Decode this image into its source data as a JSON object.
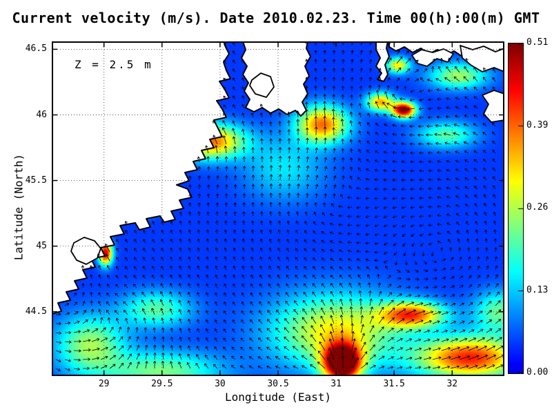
{
  "chart_data": {
    "type": "heatmap",
    "subtype": "quiver-vector-field-map",
    "title": "Current velocity (m/s). Date 2010.02.23. Time 00(h):00(m) GMT",
    "annotation": "Z = 2.5 m",
    "xlabel": "Longitude (East)",
    "ylabel": "Latitude (North)",
    "units": "m/s",
    "xlim": [
      28.55,
      32.45
    ],
    "ylim": [
      44.01,
      46.56
    ],
    "xticks": [
      29,
      29.5,
      30,
      30.5,
      31,
      31.5,
      32
    ],
    "xtick_labels": [
      "29",
      "29.5",
      "30",
      "30.5",
      "31",
      "31.5",
      "32"
    ],
    "yticks": [
      44.5,
      45,
      45.5,
      46,
      46.5
    ],
    "ytick_labels": [
      "44.5",
      "45",
      "45.5",
      "46",
      "46.5"
    ],
    "grid": "dotted",
    "colorbar": {
      "vmin": 0.0,
      "vmax": 0.51,
      "tick_labels": [
        "0.51",
        "0.39",
        "0.26",
        "0.13",
        "0.00"
      ],
      "colormap": "jet",
      "low_color": "#0000e6",
      "high_color": "#800000"
    },
    "base_magnitude": 0.045,
    "magnitude_blobs": [
      [
        31.05,
        44.11,
        0.16,
        0.14,
        0.55
      ],
      [
        31.0,
        44.35,
        0.55,
        0.28,
        0.26
      ],
      [
        32.15,
        44.15,
        0.45,
        0.16,
        0.38
      ],
      [
        31.65,
        44.48,
        0.28,
        0.1,
        0.33
      ],
      [
        29.9,
        45.8,
        0.3,
        0.13,
        0.34
      ],
      [
        30.88,
        45.93,
        0.22,
        0.14,
        0.33
      ],
      [
        31.58,
        46.04,
        0.1,
        0.06,
        0.48
      ],
      [
        31.38,
        46.1,
        0.12,
        0.07,
        0.3
      ],
      [
        29.01,
        44.95,
        0.06,
        0.09,
        0.42
      ],
      [
        28.88,
        44.25,
        0.3,
        0.22,
        0.2
      ],
      [
        32.05,
        46.3,
        0.25,
        0.1,
        0.2
      ],
      [
        31.53,
        46.38,
        0.1,
        0.06,
        0.26
      ],
      [
        32.4,
        44.5,
        0.22,
        0.16,
        0.17
      ],
      [
        29.45,
        44.52,
        0.3,
        0.14,
        0.16
      ],
      [
        30.55,
        45.6,
        0.35,
        0.25,
        0.1
      ],
      [
        31.95,
        45.85,
        0.25,
        0.1,
        0.16
      ],
      [
        29.32,
        45.32,
        0.12,
        0.08,
        0.15
      ],
      [
        29.5,
        44.05,
        0.5,
        0.15,
        0.18
      ]
    ],
    "flow_features": [
      {
        "type": "source",
        "lon": 31.05,
        "lat": 43.95,
        "strength": 2.0
      },
      {
        "type": "vortex",
        "lon": 30.85,
        "lat": 45.25,
        "strength": -1.2
      },
      {
        "type": "vortex",
        "lon": 29.95,
        "lat": 45.75,
        "strength": 0.9
      },
      {
        "type": "vortex",
        "lon": 31.95,
        "lat": 44.95,
        "strength": 1.2
      },
      {
        "type": "vortex",
        "lon": 31.45,
        "lat": 46.12,
        "strength": -0.7
      },
      {
        "type": "vortex",
        "lon": 29.35,
        "lat": 44.45,
        "strength": 0.5
      },
      {
        "type": "vortex",
        "lon": 28.4,
        "lat": 45.2,
        "strength": 1.2
      },
      {
        "type": "uniform",
        "u": -0.2,
        "v": 0.15
      }
    ],
    "land_polygons": [
      [
        [
          0,
          395
        ],
        [
          14,
          391
        ],
        [
          9,
          379
        ],
        [
          27,
          375
        ],
        [
          21,
          363
        ],
        [
          39,
          359
        ],
        [
          33,
          347
        ],
        [
          51,
          343
        ],
        [
          45,
          331
        ],
        [
          63,
          327
        ],
        [
          57,
          315
        ],
        [
          77,
          311
        ],
        [
          71,
          299
        ],
        [
          91,
          295
        ],
        [
          85,
          283
        ],
        [
          105,
          279
        ],
        [
          99,
          267
        ],
        [
          121,
          263
        ],
        [
          127,
          273
        ],
        [
          143,
          269
        ],
        [
          137,
          257
        ],
        [
          157,
          253
        ],
        [
          163,
          262
        ],
        [
          179,
          258
        ],
        [
          173,
          246
        ],
        [
          191,
          242
        ],
        [
          185,
          230
        ],
        [
          203,
          226
        ],
        [
          197,
          214
        ],
        [
          181,
          208
        ],
        [
          199,
          202
        ],
        [
          193,
          190
        ],
        [
          211,
          186
        ],
        [
          205,
          174
        ],
        [
          223,
          170
        ],
        [
          217,
          158
        ],
        [
          235,
          154
        ],
        [
          229,
          142
        ],
        [
          247,
          138
        ],
        [
          241,
          126
        ],
        [
          235,
          114
        ],
        [
          253,
          110
        ],
        [
          247,
          98
        ],
        [
          239,
          86
        ],
        [
          257,
          82
        ],
        [
          251,
          70
        ],
        [
          243,
          58
        ],
        [
          259,
          54
        ],
        [
          253,
          42
        ],
        [
          249,
          30
        ],
        [
          257,
          18
        ],
        [
          251,
          6
        ],
        [
          251,
          0
        ],
        [
          0,
          0
        ]
      ],
      [
        [
          277,
          0
        ],
        [
          281,
          12
        ],
        [
          275,
          24
        ],
        [
          283,
          36
        ],
        [
          277,
          48
        ],
        [
          285,
          60
        ],
        [
          279,
          72
        ],
        [
          287,
          84
        ],
        [
          281,
          96
        ],
        [
          293,
          102
        ],
        [
          305,
          96
        ],
        [
          317,
          104
        ],
        [
          329,
          98
        ],
        [
          341,
          106
        ],
        [
          353,
          100
        ],
        [
          361,
          108
        ],
        [
          369,
          100
        ],
        [
          363,
          88
        ],
        [
          371,
          76
        ],
        [
          365,
          62
        ],
        [
          373,
          50
        ],
        [
          367,
          36
        ],
        [
          375,
          22
        ],
        [
          369,
          10
        ],
        [
          371,
          0
        ]
      ],
      [
        [
          470,
          0
        ],
        [
          470,
          12
        ],
        [
          476,
          24
        ],
        [
          470,
          36
        ],
        [
          478,
          46
        ],
        [
          472,
          55
        ],
        [
          481,
          58
        ],
        [
          487,
          48
        ],
        [
          483,
          34
        ],
        [
          489,
          22
        ],
        [
          485,
          10
        ],
        [
          487,
          0
        ]
      ],
      [
        [
          489,
          0
        ],
        [
          489,
          8
        ],
        [
          499,
          14
        ],
        [
          511,
          8
        ],
        [
          523,
          16
        ],
        [
          535,
          10
        ],
        [
          547,
          18
        ],
        [
          559,
          12
        ],
        [
          571,
          20
        ],
        [
          583,
          14
        ],
        [
          595,
          22
        ],
        [
          607,
          16
        ],
        [
          619,
          24
        ],
        [
          631,
          18
        ],
        [
          643,
          26
        ],
        [
          656,
          20
        ],
        [
          656,
          0
        ]
      ]
    ],
    "island_outlines": [
      [
        [
          522,
          20
        ],
        [
          536,
          12
        ],
        [
          552,
          16
        ],
        [
          568,
          11
        ],
        [
          582,
          18
        ],
        [
          574,
          30
        ],
        [
          558,
          25
        ],
        [
          544,
          36
        ],
        [
          530,
          32
        ],
        [
          522,
          20
        ]
      ],
      [
        [
          592,
          6
        ],
        [
          610,
          12
        ],
        [
          626,
          7
        ],
        [
          643,
          15
        ],
        [
          656,
          10
        ],
        [
          656,
          44
        ],
        [
          641,
          38
        ],
        [
          624,
          44
        ],
        [
          607,
          34
        ],
        [
          595,
          24
        ],
        [
          592,
          6
        ]
      ],
      [
        [
          624,
          78
        ],
        [
          641,
          71
        ],
        [
          656,
          76
        ],
        [
          656,
          114
        ],
        [
          637,
          117
        ],
        [
          626,
          105
        ],
        [
          633,
          91
        ],
        [
          624,
          78
        ]
      ]
    ],
    "lake_outlines": [
      [
        [
          32,
          292
        ],
        [
          47,
          284
        ],
        [
          62,
          289
        ],
        [
          71,
          300
        ],
        [
          66,
          314
        ],
        [
          50,
          323
        ],
        [
          36,
          317
        ],
        [
          28,
          304
        ],
        [
          32,
          292
        ]
      ],
      [
        [
          290,
          56
        ],
        [
          303,
          46
        ],
        [
          317,
          51
        ],
        [
          322,
          66
        ],
        [
          311,
          81
        ],
        [
          295,
          76
        ],
        [
          287,
          64
        ],
        [
          290,
          56
        ]
      ]
    ]
  }
}
